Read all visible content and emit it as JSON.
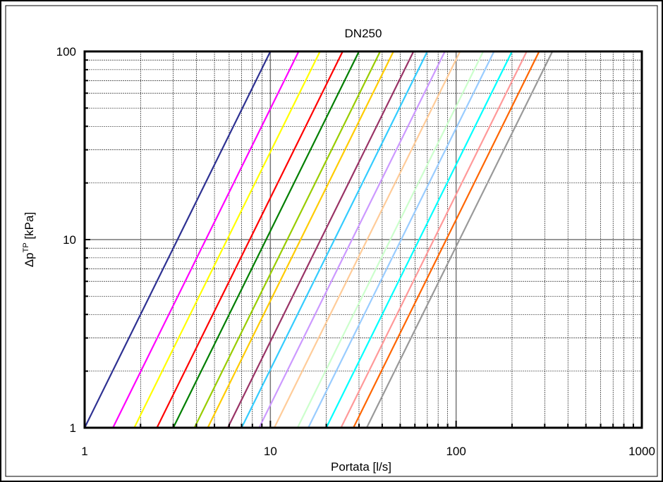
{
  "chart_data": {
    "type": "line",
    "title": "DN250",
    "xlabel": "Portata [l/s]",
    "ylabel_main": "Δp",
    "ylabel_sup": "TP",
    "ylabel_unit": " [kPa]",
    "x_scale": "log",
    "y_scale": "log",
    "xlim": [
      1,
      1000
    ],
    "ylim": [
      1,
      100
    ],
    "x_ticks": [
      1,
      10,
      100,
      1000
    ],
    "x_tick_labels": [
      "1",
      "10",
      "100",
      "1000"
    ],
    "y_ticks": [
      1,
      10,
      100
    ],
    "y_tick_labels": [
      "1",
      "10",
      "100"
    ],
    "grid": true,
    "legend": "none",
    "series": [
      {
        "color": "#2E3192",
        "x": [
          1.0,
          10.0
        ],
        "y": [
          1,
          100
        ]
      },
      {
        "color": "#FF00FF",
        "x": [
          1.42,
          14.2
        ],
        "y": [
          1,
          100
        ]
      },
      {
        "color": "#FFFF00",
        "x": [
          1.85,
          18.5
        ],
        "y": [
          1,
          100
        ]
      },
      {
        "color": "#FF0000",
        "x": [
          2.45,
          24.5
        ],
        "y": [
          1,
          100
        ]
      },
      {
        "color": "#008000",
        "x": [
          3.0,
          30.0
        ],
        "y": [
          1,
          100
        ]
      },
      {
        "color": "#99CC00",
        "x": [
          3.9,
          39.0
        ],
        "y": [
          1,
          100
        ]
      },
      {
        "color": "#FFCC00",
        "x": [
          4.6,
          46.0
        ],
        "y": [
          1,
          100
        ]
      },
      {
        "color": "#993366",
        "x": [
          5.9,
          59.0
        ],
        "y": [
          1,
          100
        ]
      },
      {
        "color": "#33CCFF",
        "x": [
          7.0,
          70.0
        ],
        "y": [
          1,
          100
        ]
      },
      {
        "color": "#CC99FF",
        "x": [
          8.7,
          87.0
        ],
        "y": [
          1,
          100
        ]
      },
      {
        "color": "#FFCC99",
        "x": [
          10.5,
          105.0
        ],
        "y": [
          1,
          100
        ]
      },
      {
        "color": "#CCFFCC",
        "x": [
          14.0,
          140.0
        ],
        "y": [
          1,
          100
        ]
      },
      {
        "color": "#99CCFF",
        "x": [
          16.0,
          160.0
        ],
        "y": [
          1,
          100
        ]
      },
      {
        "color": "#00FFFF",
        "x": [
          20.0,
          200.0
        ],
        "y": [
          1,
          100
        ]
      },
      {
        "color": "#FF9999",
        "x": [
          24.0,
          240.0
        ],
        "y": [
          1,
          100
        ]
      },
      {
        "color": "#FF6600",
        "x": [
          28.0,
          280.0
        ],
        "y": [
          1,
          100
        ]
      },
      {
        "color": "#999999",
        "x": [
          33.0,
          330.0
        ],
        "y": [
          1,
          100
        ]
      }
    ]
  }
}
